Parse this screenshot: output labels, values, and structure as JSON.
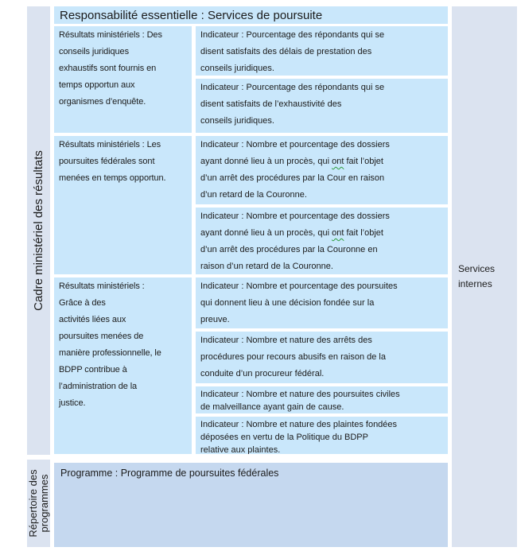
{
  "colors": {
    "cell_blue": "#c9e7fb",
    "rail_blue_gray": "#dbe3f0",
    "programme_blue": "#c5d8ef",
    "grammar_underline_green": "#2e9e3e",
    "text": "#1b1b1b",
    "background": "#ffffff"
  },
  "page": {
    "framework_axis_label": "Cadre ministériel des résultats",
    "repertoire_axis_label": "Répertoire des\nprogrammes",
    "core_responsibility_header": "Responsabilité essentielle : Services de poursuite",
    "internal_services_label": "Services\ninternes",
    "programme_label": "Programme : Programme de poursuites fédérales"
  },
  "groups": [
    {
      "resultat": "Résultats ministériels : Des\nconseils juridiques\nexhaustifs sont fournis en\ntemps opportun aux\norganismes d’enquête.",
      "indicators": [
        {
          "text": "Indicateur : Pourcentage des répondants qui se\ndisent satisfaits des délais de prestation des\nconseils juridiques."
        },
        {
          "text": "Indicateur : Pourcentage des répondants qui se\ndisent satisfaits de l’exhaustivité des\nconseils juridiques."
        }
      ]
    },
    {
      "resultat": "Résultats ministériels : Les\npoursuites fédérales sont\nmenées en temps opportun.",
      "indicators": [
        {
          "pre": "Indicateur : Nombre et pourcentage des dossiers\nayant donné lieu à un procès, qui ",
          "mark": "ont",
          "post": " fait l’objet\nd’un arrêt des procédures par la Cour en raison\nd’un retard de la Couronne."
        },
        {
          "pre": "Indicateur : Nombre et pourcentage des dossiers\nayant donné lieu à un procès, qui ",
          "mark": "ont",
          "post": " fait l’objet\nd’un arrêt des procédures par la Couronne en\nraison d’un retard de la Couronne."
        }
      ]
    },
    {
      "resultat": "Résultats ministériels :\nGrâce à des\nactivités liées aux\npoursuites menées de\nmanière professionnelle, le\nBDPP contribue à\nl’administration de la\njustice.",
      "indicators": [
        {
          "text": "Indicateur : Nombre et pourcentage des poursuites\nqui donnent lieu à une décision fondée sur la\npreuve."
        },
        {
          "text": "Indicateur : Nombre et nature des arrêts des\nprocédures pour recours abusifs en raison de la\nconduite d’un procureur fédéral."
        },
        {
          "text": "Indicateur : Nombre et nature des poursuites civiles\nde malveillance ayant gain de cause."
        },
        {
          "text": "Indicateur : Nombre et nature des plaintes fondées\ndéposées en vertu de la Politique du BDPP\nrelative aux plaintes."
        }
      ]
    }
  ]
}
